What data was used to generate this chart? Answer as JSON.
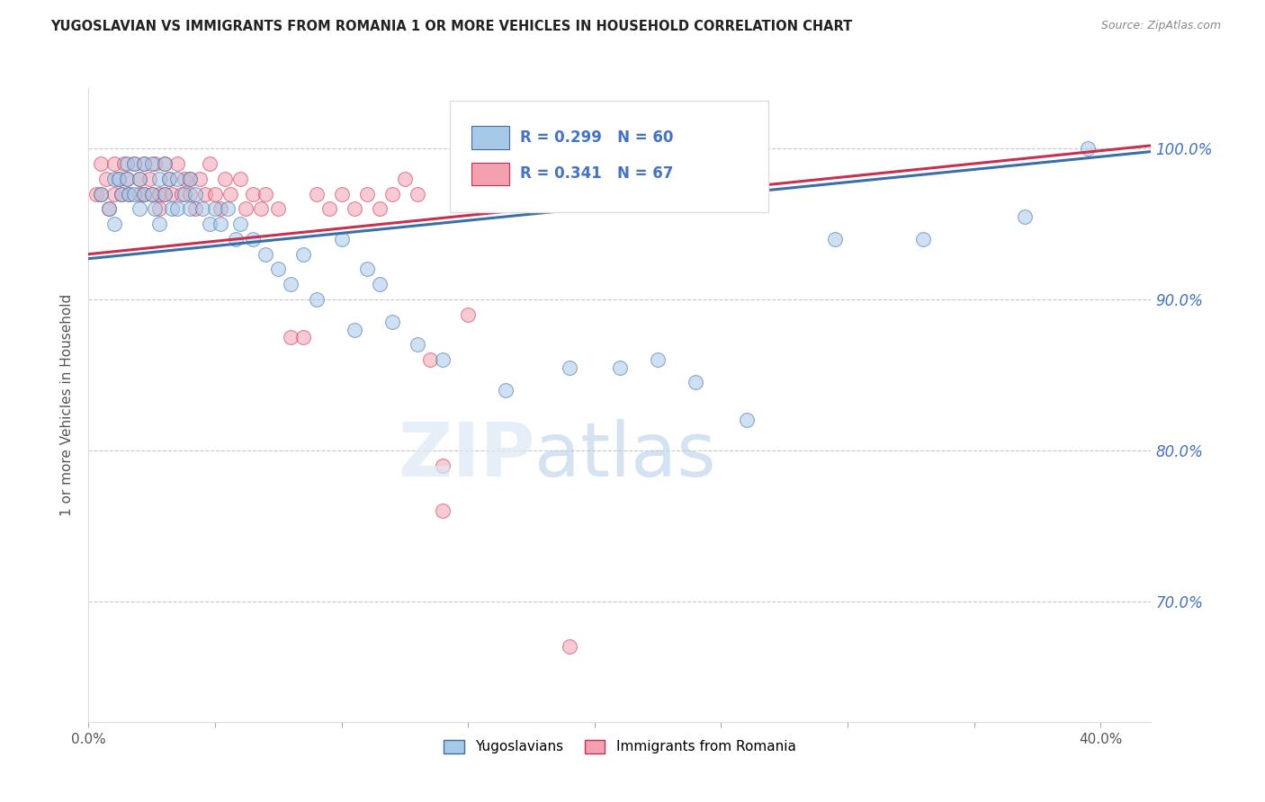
{
  "title": "YUGOSLAVIAN VS IMMIGRANTS FROM ROMANIA 1 OR MORE VEHICLES IN HOUSEHOLD CORRELATION CHART",
  "source": "Source: ZipAtlas.com",
  "ylabel_label": "1 or more Vehicles in Household",
  "legend_label1": "Yugoslavians",
  "legend_label2": "Immigrants from Romania",
  "R1": 0.299,
  "N1": 60,
  "R2": 0.341,
  "N2": 67,
  "xlim": [
    0.0,
    0.42
  ],
  "ylim": [
    0.62,
    1.04
  ],
  "xticks": [
    0.0,
    0.05,
    0.1,
    0.15,
    0.2,
    0.25,
    0.3,
    0.35,
    0.4
  ],
  "yticks": [
    0.7,
    0.8,
    0.9,
    1.0
  ],
  "ytick_labels": [
    "70.0%",
    "80.0%",
    "90.0%",
    "100.0%"
  ],
  "xtick_labels": [
    "0.0%",
    "",
    "",
    "",
    "",
    "",
    "",
    "",
    "40.0%"
  ],
  "color_blue": "#a8c8e8",
  "color_pink": "#f4a0b0",
  "color_line_blue": "#3a6fa8",
  "color_line_pink": "#c83050",
  "blue_scatter_x": [
    0.005,
    0.008,
    0.01,
    0.01,
    0.012,
    0.013,
    0.015,
    0.015,
    0.016,
    0.018,
    0.018,
    0.02,
    0.02,
    0.022,
    0.022,
    0.025,
    0.025,
    0.026,
    0.028,
    0.028,
    0.03,
    0.03,
    0.032,
    0.033,
    0.035,
    0.035,
    0.038,
    0.04,
    0.04,
    0.042,
    0.045,
    0.048,
    0.05,
    0.052,
    0.055,
    0.058,
    0.06,
    0.065,
    0.07,
    0.075,
    0.08,
    0.085,
    0.09,
    0.1,
    0.105,
    0.11,
    0.115,
    0.12,
    0.13,
    0.14,
    0.165,
    0.19,
    0.21,
    0.225,
    0.24,
    0.26,
    0.295,
    0.33,
    0.37,
    0.395
  ],
  "blue_scatter_y": [
    0.97,
    0.96,
    0.98,
    0.95,
    0.98,
    0.97,
    0.99,
    0.98,
    0.97,
    0.99,
    0.97,
    0.98,
    0.96,
    0.99,
    0.97,
    0.99,
    0.97,
    0.96,
    0.98,
    0.95,
    0.99,
    0.97,
    0.98,
    0.96,
    0.98,
    0.96,
    0.97,
    0.98,
    0.96,
    0.97,
    0.96,
    0.95,
    0.96,
    0.95,
    0.96,
    0.94,
    0.95,
    0.94,
    0.93,
    0.92,
    0.91,
    0.93,
    0.9,
    0.94,
    0.88,
    0.92,
    0.91,
    0.885,
    0.87,
    0.86,
    0.84,
    0.855,
    0.855,
    0.86,
    0.845,
    0.82,
    0.94,
    0.94,
    0.955,
    1.0
  ],
  "pink_scatter_x": [
    0.003,
    0.005,
    0.005,
    0.007,
    0.008,
    0.01,
    0.01,
    0.012,
    0.013,
    0.014,
    0.015,
    0.016,
    0.018,
    0.02,
    0.02,
    0.022,
    0.022,
    0.024,
    0.025,
    0.026,
    0.028,
    0.028,
    0.03,
    0.03,
    0.032,
    0.033,
    0.035,
    0.037,
    0.038,
    0.04,
    0.04,
    0.042,
    0.044,
    0.046,
    0.048,
    0.05,
    0.052,
    0.054,
    0.056,
    0.06,
    0.062,
    0.065,
    0.068,
    0.07,
    0.075,
    0.08,
    0.085,
    0.09,
    0.095,
    0.1,
    0.105,
    0.11,
    0.115,
    0.12,
    0.125,
    0.13,
    0.135,
    0.14,
    0.15,
    0.16,
    0.17,
    0.18,
    0.19,
    0.21,
    0.23,
    0.25,
    0.14
  ],
  "pink_scatter_y": [
    0.97,
    0.99,
    0.97,
    0.98,
    0.96,
    0.99,
    0.97,
    0.98,
    0.97,
    0.99,
    0.98,
    0.97,
    0.99,
    0.98,
    0.97,
    0.99,
    0.97,
    0.98,
    0.97,
    0.99,
    0.97,
    0.96,
    0.99,
    0.97,
    0.98,
    0.97,
    0.99,
    0.97,
    0.98,
    0.98,
    0.97,
    0.96,
    0.98,
    0.97,
    0.99,
    0.97,
    0.96,
    0.98,
    0.97,
    0.98,
    0.96,
    0.97,
    0.96,
    0.97,
    0.96,
    0.875,
    0.875,
    0.97,
    0.96,
    0.97,
    0.96,
    0.97,
    0.96,
    0.97,
    0.98,
    0.97,
    0.86,
    0.79,
    0.89,
    0.97,
    0.97,
    0.98,
    0.67,
    0.97,
    0.97,
    0.97,
    0.76
  ],
  "blue_trend_x": [
    0.0,
    0.42
  ],
  "blue_trend_y": [
    0.927,
    0.998
  ],
  "pink_trend_x": [
    0.0,
    0.42
  ],
  "pink_trend_y": [
    0.93,
    1.002
  ],
  "background_color": "#ffffff",
  "grid_color": "#c8c8c8",
  "title_color": "#222222",
  "tick_color_right": "#4472c4",
  "source_color": "#888888"
}
